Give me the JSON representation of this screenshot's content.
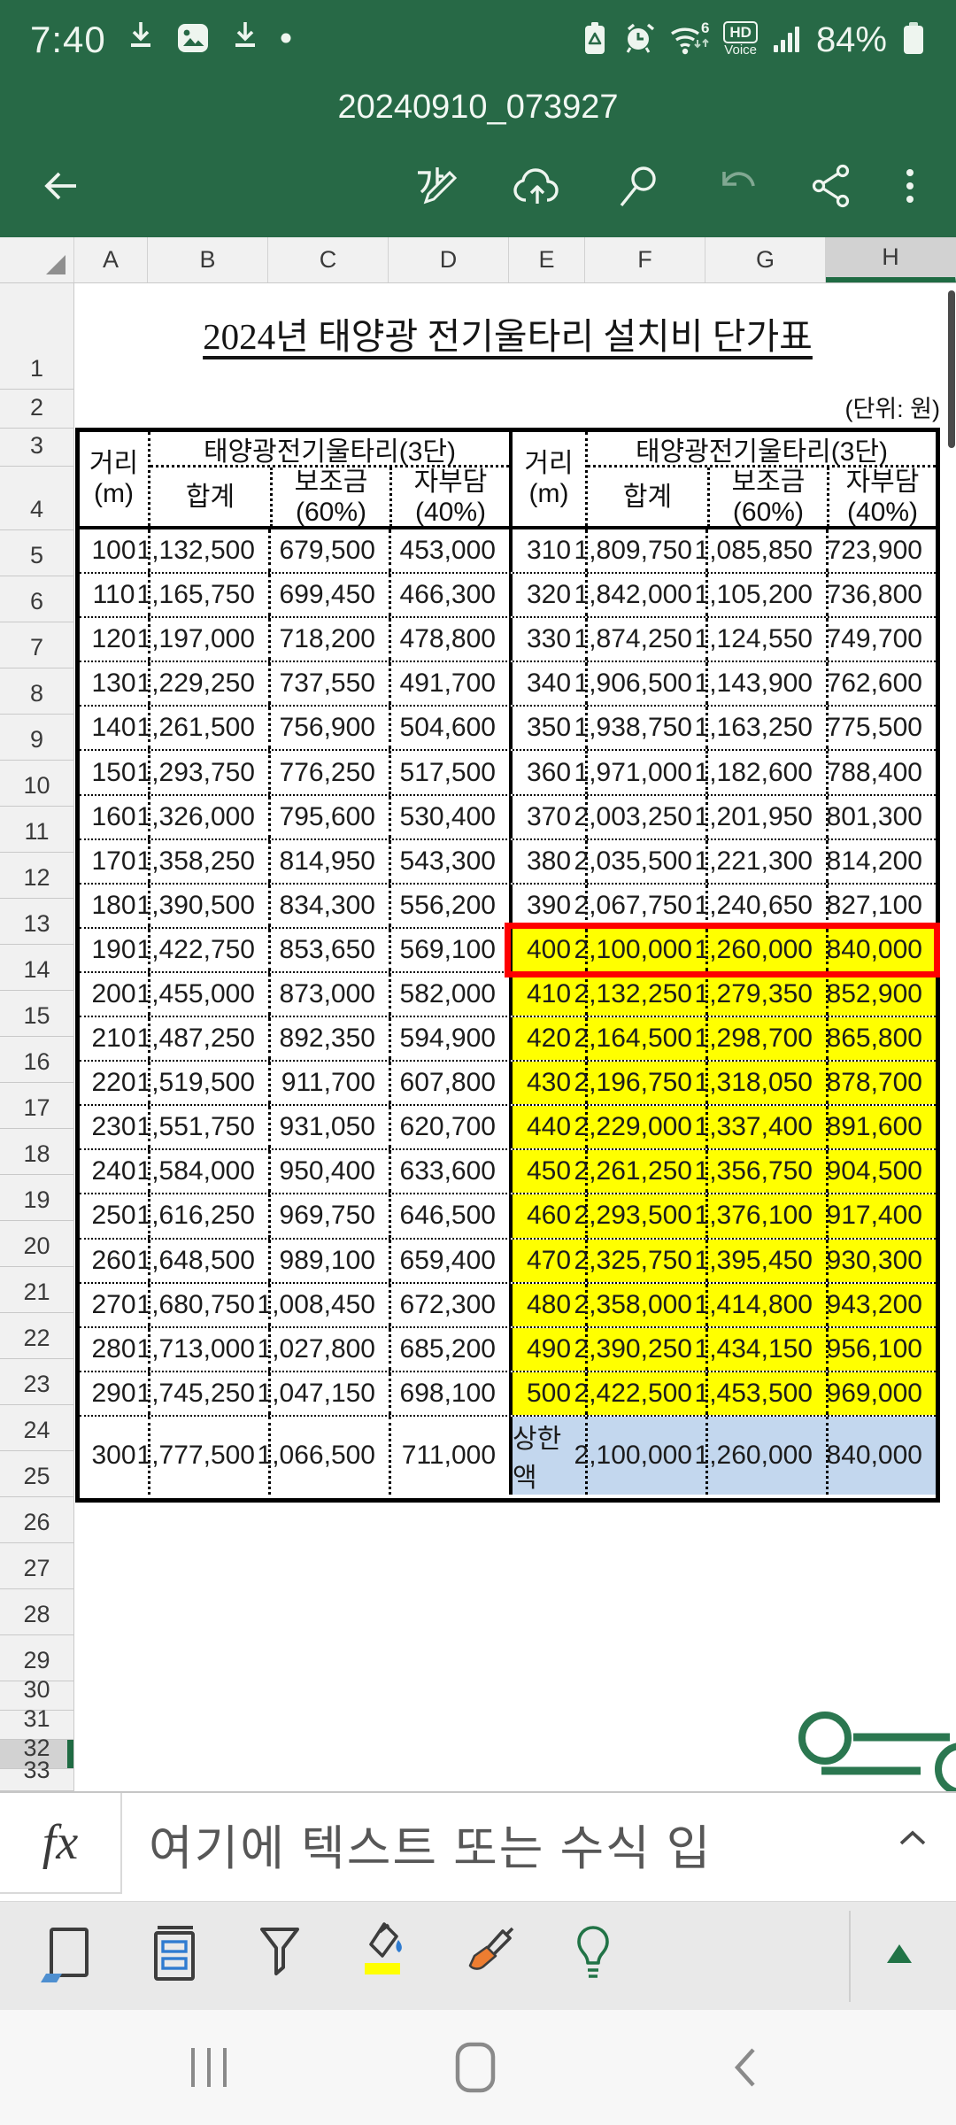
{
  "status_bar": {
    "time": "7:40",
    "battery_percent": "84%",
    "hd_badge": "HD",
    "hd_badge_sub": "Voice",
    "left_icons": [
      "download-icon",
      "gallery-icon",
      "download-icon",
      "notification-dot"
    ],
    "right_icons": [
      "battery-saver-icon",
      "alarm-icon",
      "wifi6-icon",
      "hd-voice-badge",
      "signal-icon",
      "battery-icon"
    ]
  },
  "title_bar": {
    "filename": "20240910_073927"
  },
  "toolbar": {
    "icons": [
      "back-arrow",
      "edit-pen",
      "cloud-upload",
      "search",
      "undo",
      "share",
      "more-menu"
    ]
  },
  "sheet": {
    "columns": [
      "A",
      "B",
      "C",
      "D",
      "E",
      "F",
      "G",
      "H"
    ],
    "selected_column": "H",
    "row_count": 33,
    "selected_row": 32,
    "title": "2024년 태양광 전기울타리 설치비 단가표",
    "unit_note": "(단위: 원)"
  },
  "table": {
    "group_header": "태양광전기울타리(3단)",
    "headers": {
      "distance": "거리\n(m)",
      "total": "합계",
      "subsidy": "보조금\n(60%)",
      "self_pay": "자부담\n(40%)"
    },
    "rows": [
      {
        "left": [
          "100",
          "1,132,500",
          "679,500",
          "453,000"
        ],
        "right": [
          "310",
          "1,809,750",
          "1,085,850",
          "723,900"
        ],
        "hl": "none"
      },
      {
        "left": [
          "110",
          "1,165,750",
          "699,450",
          "466,300"
        ],
        "right": [
          "320",
          "1,842,000",
          "1,105,200",
          "736,800"
        ],
        "hl": "none"
      },
      {
        "left": [
          "120",
          "1,197,000",
          "718,200",
          "478,800"
        ],
        "right": [
          "330",
          "1,874,250",
          "1,124,550",
          "749,700"
        ],
        "hl": "none"
      },
      {
        "left": [
          "130",
          "1,229,250",
          "737,550",
          "491,700"
        ],
        "right": [
          "340",
          "1,906,500",
          "1,143,900",
          "762,600"
        ],
        "hl": "none"
      },
      {
        "left": [
          "140",
          "1,261,500",
          "756,900",
          "504,600"
        ],
        "right": [
          "350",
          "1,938,750",
          "1,163,250",
          "775,500"
        ],
        "hl": "none"
      },
      {
        "left": [
          "150",
          "1,293,750",
          "776,250",
          "517,500"
        ],
        "right": [
          "360",
          "1,971,000",
          "1,182,600",
          "788,400"
        ],
        "hl": "none"
      },
      {
        "left": [
          "160",
          "1,326,000",
          "795,600",
          "530,400"
        ],
        "right": [
          "370",
          "2,003,250",
          "1,201,950",
          "801,300"
        ],
        "hl": "none"
      },
      {
        "left": [
          "170",
          "1,358,250",
          "814,950",
          "543,300"
        ],
        "right": [
          "380",
          "2,035,500",
          "1,221,300",
          "814,200"
        ],
        "hl": "none"
      },
      {
        "left": [
          "180",
          "1,390,500",
          "834,300",
          "556,200"
        ],
        "right": [
          "390",
          "2,067,750",
          "1,240,650",
          "827,100"
        ],
        "hl": "none"
      },
      {
        "left": [
          "190",
          "1,422,750",
          "853,650",
          "569,100"
        ],
        "right": [
          "400",
          "2,100,000",
          "1,260,000",
          "840,000"
        ],
        "hl": "yellow-red"
      },
      {
        "left": [
          "200",
          "1,455,000",
          "873,000",
          "582,000"
        ],
        "right": [
          "410",
          "2,132,250",
          "1,279,350",
          "852,900"
        ],
        "hl": "yellow"
      },
      {
        "left": [
          "210",
          "1,487,250",
          "892,350",
          "594,900"
        ],
        "right": [
          "420",
          "2,164,500",
          "1,298,700",
          "865,800"
        ],
        "hl": "yellow"
      },
      {
        "left": [
          "220",
          "1,519,500",
          "911,700",
          "607,800"
        ],
        "right": [
          "430",
          "2,196,750",
          "1,318,050",
          "878,700"
        ],
        "hl": "yellow"
      },
      {
        "left": [
          "230",
          "1,551,750",
          "931,050",
          "620,700"
        ],
        "right": [
          "440",
          "2,229,000",
          "1,337,400",
          "891,600"
        ],
        "hl": "yellow"
      },
      {
        "left": [
          "240",
          "1,584,000",
          "950,400",
          "633,600"
        ],
        "right": [
          "450",
          "2,261,250",
          "1,356,750",
          "904,500"
        ],
        "hl": "yellow"
      },
      {
        "left": [
          "250",
          "1,616,250",
          "969,750",
          "646,500"
        ],
        "right": [
          "460",
          "2,293,500",
          "1,376,100",
          "917,400"
        ],
        "hl": "yellow"
      },
      {
        "left": [
          "260",
          "1,648,500",
          "989,100",
          "659,400"
        ],
        "right": [
          "470",
          "2,325,750",
          "1,395,450",
          "930,300"
        ],
        "hl": "yellow"
      },
      {
        "left": [
          "270",
          "1,680,750",
          "1,008,450",
          "672,300"
        ],
        "right": [
          "480",
          "2,358,000",
          "1,414,800",
          "943,200"
        ],
        "hl": "yellow"
      },
      {
        "left": [
          "280",
          "1,713,000",
          "1,027,800",
          "685,200"
        ],
        "right": [
          "490",
          "2,390,250",
          "1,434,150",
          "956,100"
        ],
        "hl": "yellow"
      },
      {
        "left": [
          "290",
          "1,745,250",
          "1,047,150",
          "698,100"
        ],
        "right": [
          "500",
          "2,422,500",
          "1,453,500",
          "969,000"
        ],
        "hl": "yellow"
      },
      {
        "left": [
          "300",
          "1,777,500",
          "1,066,500",
          "711,000"
        ],
        "right": [
          "상한액",
          "2,100,000",
          "1,260,000",
          "840,000"
        ],
        "hl": "cap"
      }
    ]
  },
  "formula_bar": {
    "fx": "fx",
    "placeholder": "여기에 텍스트 또는 수식 입"
  },
  "bottom_toolbar": {
    "icons": [
      "sheet-view",
      "card-view",
      "filter",
      "fill-color",
      "format-painter",
      "ideas-bulb",
      "expand-triangle"
    ]
  },
  "nav_bar": {
    "icons": [
      "recents",
      "home",
      "back"
    ]
  },
  "colors": {
    "header_green": "#276946",
    "accent_green": "#1f6b43",
    "highlight_yellow": "#ffff00",
    "cap_blue": "#c3d7ee",
    "alert_red": "#fe0000"
  }
}
